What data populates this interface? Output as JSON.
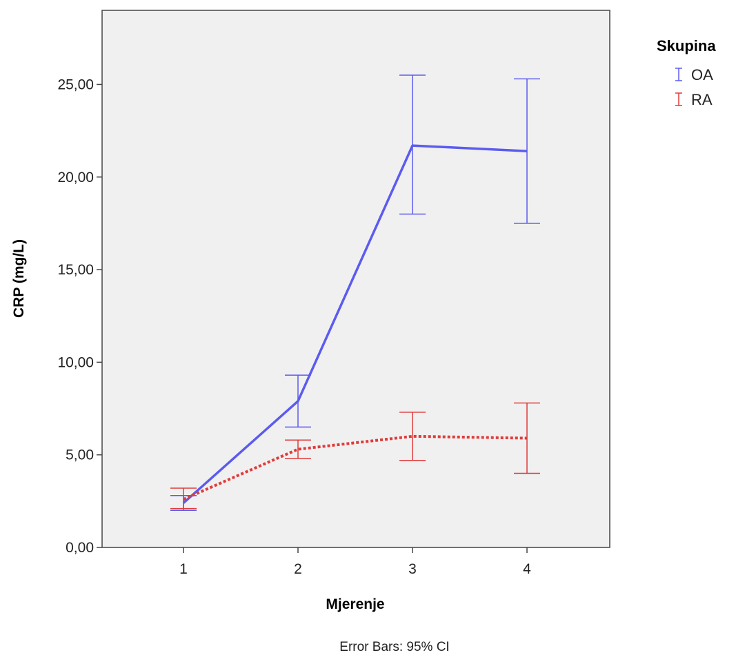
{
  "chart_data": {
    "type": "line",
    "xlabel": "Mjerenje",
    "ylabel": "CRP (mg/L)",
    "categories": [
      "1",
      "2",
      "3",
      "4"
    ],
    "ylim": [
      0,
      29
    ],
    "yticks": [
      0,
      5,
      10,
      15,
      20,
      25
    ],
    "ytick_labels": [
      "0,00",
      "5,00",
      "10,00",
      "15,00",
      "20,00",
      "25,00"
    ],
    "grid": false,
    "legend": {
      "title": "Skupina",
      "position": "right-top"
    },
    "footnote": "Error Bars: 95% CI",
    "series": [
      {
        "name": "OA",
        "color": "#5b5bf0",
        "line_style": "solid",
        "values": [
          2.4,
          7.9,
          21.7,
          21.4
        ],
        "ci_lower": [
          2.0,
          6.5,
          18.0,
          17.5
        ],
        "ci_upper": [
          2.8,
          9.3,
          25.5,
          25.3
        ]
      },
      {
        "name": "RA",
        "color": "#e03a3a",
        "line_style": "dotted",
        "values": [
          2.6,
          5.3,
          6.0,
          5.9
        ],
        "ci_lower": [
          2.1,
          4.8,
          4.7,
          4.0
        ],
        "ci_upper": [
          3.2,
          5.8,
          7.3,
          7.8
        ]
      }
    ]
  }
}
